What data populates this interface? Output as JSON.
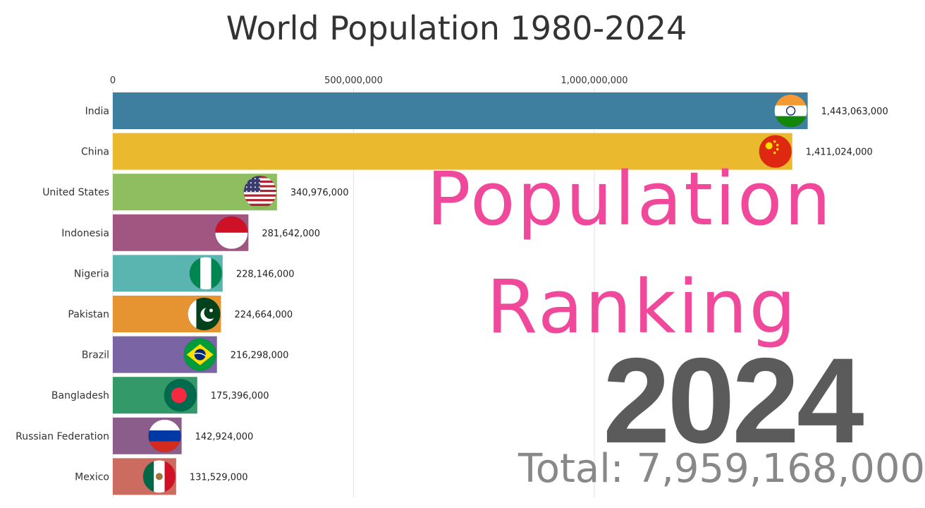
{
  "chart_data": {
    "type": "bar",
    "orientation": "horizontal",
    "title": "World Population 1980-2024",
    "x_ticks": [
      {
        "value": 0,
        "label": "0"
      },
      {
        "value": 500000000,
        "label": "500,000,000"
      },
      {
        "value": 1000000000,
        "label": "1,000,000,000"
      }
    ],
    "xlim": [
      0,
      1500000000
    ],
    "grid": true,
    "categories": [
      "India",
      "China",
      "United States",
      "Indonesia",
      "Nigeria",
      "Pakistan",
      "Brazil",
      "Bangladesh",
      "Russian Federation",
      "Mexico"
    ],
    "values": [
      1443063000,
      1411024000,
      340976000,
      281642000,
      228146000,
      224664000,
      216298000,
      175396000,
      142924000,
      131529000
    ],
    "value_labels": [
      "1,443,063,000",
      "1,411,024,000",
      "340,976,000",
      "281,642,000",
      "228,146,000",
      "224,664,000",
      "216,298,000",
      "175,396,000",
      "142,924,000",
      "131,529,000"
    ],
    "colors": [
      "#3e7fa0",
      "#ebb92e",
      "#8ebe5f",
      "#a05680",
      "#5ab5b1",
      "#e59431",
      "#7a64a3",
      "#349969",
      "#8a5d8a",
      "#cc6b5f"
    ],
    "flags": [
      "india-flag-icon",
      "china-flag-icon",
      "usa-flag-icon",
      "indonesia-flag-icon",
      "nigeria-flag-icon",
      "pakistan-flag-icon",
      "brazil-flag-icon",
      "bangladesh-flag-icon",
      "russia-flag-icon",
      "mexico-flag-icon"
    ]
  },
  "overlay": {
    "line1": "Population",
    "line2": "Ranking",
    "year": "2024",
    "total": "Total: 7,959,168,000"
  }
}
